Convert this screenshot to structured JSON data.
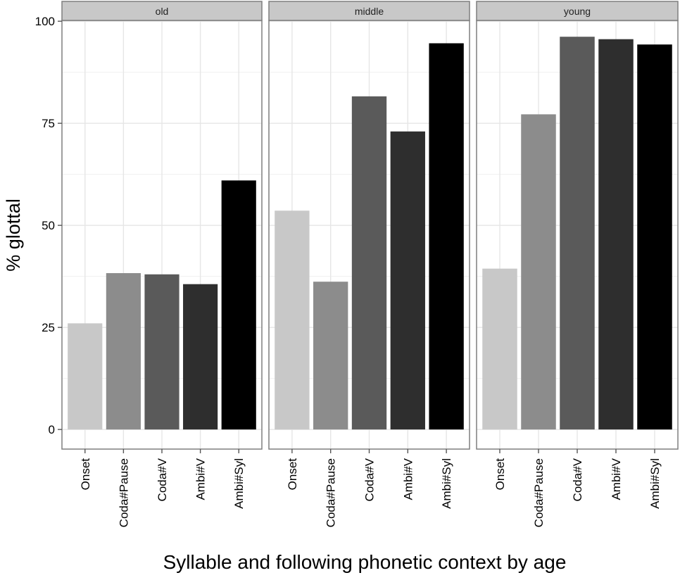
{
  "chart_data": {
    "type": "bar",
    "facet_by": "age",
    "facets": [
      "old",
      "middle",
      "young"
    ],
    "categories": [
      "Onset",
      "Coda#Pause",
      "Coda#V",
      "Ambi#V",
      "Ambi#Syl"
    ],
    "bar_colors": [
      "#c8c8c8",
      "#8c8c8c",
      "#5a5a5a",
      "#2e2e2e",
      "#000000"
    ],
    "values": {
      "old": [
        26,
        38.3,
        38,
        35.6,
        61
      ],
      "middle": [
        53.6,
        36.2,
        81.6,
        73,
        94.6
      ],
      "young": [
        39.4,
        77.2,
        96.2,
        95.6,
        94.3
      ]
    },
    "title": "",
    "xlabel": "Syllable and following phonetic context by age",
    "ylabel": "% glottal",
    "ylim": [
      -4.8,
      100.2
    ],
    "yticks": [
      0,
      25,
      50,
      75,
      100
    ],
    "grid": true,
    "legend": "none",
    "strip_fill": "#c8c8c8",
    "panel_border": "#7f7f7f",
    "grid_color": "#e6e6e6"
  }
}
